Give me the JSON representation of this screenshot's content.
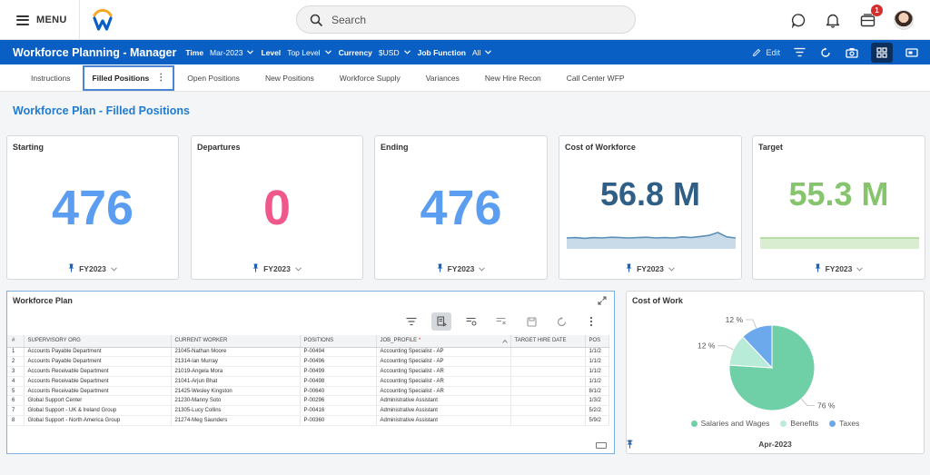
{
  "topbar": {
    "menu_label": "MENU",
    "search_placeholder": "Search",
    "notification_count": "1"
  },
  "header": {
    "title": "Workforce Planning - Manager",
    "filters": [
      {
        "key": "Time",
        "value": "Mar-2023"
      },
      {
        "key": "Level",
        "value": "Top Level"
      },
      {
        "key": "Currency",
        "value": "$USD"
      },
      {
        "key": "Job Function",
        "value": "All"
      }
    ],
    "edit_label": "Edit"
  },
  "tabs": [
    {
      "label": "Instructions"
    },
    {
      "label": "Filled Positions"
    },
    {
      "label": "Open Positions"
    },
    {
      "label": "New Positions"
    },
    {
      "label": "Workforce Supply"
    },
    {
      "label": "Variances"
    },
    {
      "label": "New Hire Recon"
    },
    {
      "label": "Call Center WFP"
    }
  ],
  "page_title": "Workforce Plan - Filled Positions",
  "kpis": {
    "starting": {
      "title": "Starting",
      "value": "476",
      "period": "FY2023",
      "color": "#5b9df0"
    },
    "departures": {
      "title": "Departures",
      "value": "0",
      "period": "FY2023",
      "color": "#f0588a"
    },
    "ending": {
      "title": "Ending",
      "value": "476",
      "period": "FY2023",
      "color": "#5b9df0"
    },
    "cost": {
      "title": "Cost of Workforce",
      "value": "56.8 M",
      "period": "FY2023",
      "color": "#2f5f86"
    },
    "target": {
      "title": "Target",
      "value": "55.3 M",
      "period": "FY2023",
      "color": "#86c46e"
    }
  },
  "workforce_plan": {
    "title": "Workforce Plan",
    "columns": [
      "#",
      "SUPERVISORY ORG",
      "CURRENT WORKER",
      "POSITIONS",
      "JOB_PROFILE",
      "TARGET HIRE DATE",
      "POS"
    ],
    "required_marker": "*",
    "rows": [
      [
        "1",
        "Accounts Payable Department",
        "21045-Nathan Moore",
        "P-00494",
        "Accounting Specialist - AP",
        "",
        "1/1/2"
      ],
      [
        "2",
        "Accounts Payable Department",
        "21314-Ian Murray",
        "P-00496",
        "Accounting Specialist - AP",
        "",
        "1/1/2"
      ],
      [
        "3",
        "Accounts Receivable Department",
        "21019-Angela Mora",
        "P-00499",
        "Accounting Specialist - AR",
        "",
        "1/1/2"
      ],
      [
        "4",
        "Accounts Receivable Department",
        "21041-Arjun Bhat",
        "P-00498",
        "Accounting Specialist - AR",
        "",
        "1/1/2"
      ],
      [
        "5",
        "Accounts Receivable Department",
        "21425-Wesley Kingston",
        "P-00640",
        "Accounting Specialist - AR",
        "",
        "8/1/2"
      ],
      [
        "6",
        "Global Support Center",
        "21230-Manny Soto",
        "P-00296",
        "Administrative Assistant",
        "",
        "1/3/2"
      ],
      [
        "7",
        "Global Support - UK & Ireland Group",
        "21305-Lucy Collins",
        "P-00416",
        "Administrative Assistant",
        "",
        "5/2/2"
      ],
      [
        "8",
        "Global Support - North America Group",
        "21274-Meg Saunders",
        "P-00360",
        "Administrative Assistant",
        "",
        "5/9/2"
      ]
    ]
  },
  "cost_of_work": {
    "title": "Cost of Work",
    "period": "Apr-2023",
    "chart_data": {
      "type": "pie",
      "categories": [
        "Salaries and Wages",
        "Benefits",
        "Taxes"
      ],
      "values": [
        76,
        12,
        12
      ],
      "labels": [
        "76 %",
        "12 %",
        "12 %"
      ],
      "colors": [
        "#6fcfa6",
        "#b9ecd8",
        "#6ca8ec"
      ],
      "legend": "bottom"
    }
  },
  "sparklines": {
    "cost": {
      "values": [
        30,
        31,
        29,
        31,
        30,
        32,
        31,
        30,
        31,
        32,
        30,
        31,
        30,
        33,
        31,
        34,
        37,
        45,
        33,
        30
      ],
      "color": "#5a8fb8",
      "fill": "#c9dbe9"
    },
    "target": {
      "values": [
        30,
        30,
        30,
        30,
        30,
        30,
        30,
        30,
        30,
        30,
        30,
        30,
        30,
        30,
        30,
        30,
        30,
        30,
        30,
        30
      ],
      "color": "#a7d68f",
      "fill": "#d9eed0"
    }
  }
}
